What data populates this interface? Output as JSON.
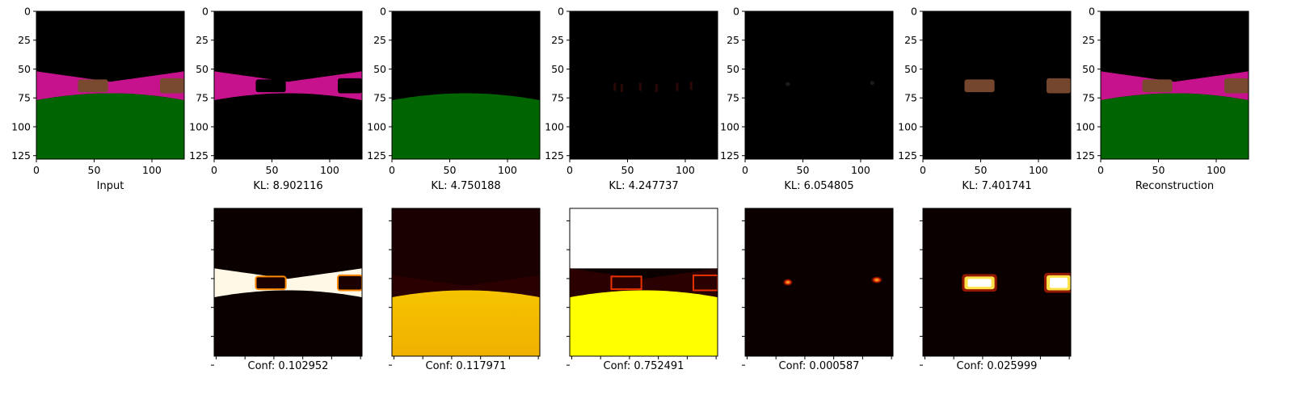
{
  "colors": {
    "background": "#000000",
    "road_magenta": "#c7128d",
    "grass_green": "#006400",
    "car_brown": "#7a4a30",
    "heat_low": "#000000",
    "heat_mid": "#e03300",
    "heat_high": "#ffff00",
    "heat_max": "#ffffff"
  },
  "chart_data": [
    {
      "type": "image",
      "content": "input",
      "xlabel": "Input",
      "xlim": [
        0,
        128
      ],
      "ylim": [
        128,
        0
      ],
      "xticks": [
        "0",
        "50",
        "100"
      ],
      "yticks": [
        "0",
        "25",
        "50",
        "75",
        "100",
        "125"
      ]
    },
    {
      "type": "image",
      "content": "component",
      "component": "road",
      "xlabel": "KL: 8.902116",
      "kl": 8.902116,
      "xlim": [
        0,
        128
      ],
      "ylim": [
        128,
        0
      ],
      "xticks": [
        "0",
        "50",
        "100"
      ],
      "yticks": [
        "0",
        "25",
        "50",
        "75",
        "100",
        "125"
      ]
    },
    {
      "type": "image",
      "content": "component",
      "component": "grass",
      "xlabel": "KL: 4.750188",
      "kl": 4.750188,
      "xlim": [
        0,
        128
      ],
      "ylim": [
        128,
        0
      ],
      "xticks": [
        "0",
        "50",
        "100"
      ],
      "yticks": [
        "0",
        "25",
        "50",
        "75",
        "100",
        "125"
      ]
    },
    {
      "type": "image",
      "content": "component",
      "component": "sky-edges",
      "xlabel": "KL: 4.247737",
      "kl": 4.247737,
      "xlim": [
        0,
        128
      ],
      "ylim": [
        128,
        0
      ],
      "xticks": [
        "0",
        "50",
        "100"
      ],
      "yticks": [
        "0",
        "25",
        "50",
        "75",
        "100",
        "125"
      ]
    },
    {
      "type": "image",
      "content": "component",
      "component": "faint",
      "xlabel": "KL: 6.054805",
      "kl": 6.054805,
      "xlim": [
        0,
        128
      ],
      "ylim": [
        128,
        0
      ],
      "xticks": [
        "0",
        "50",
        "100"
      ],
      "yticks": [
        "0",
        "25",
        "50",
        "75",
        "100",
        "125"
      ]
    },
    {
      "type": "image",
      "content": "component",
      "component": "cars",
      "xlabel": "KL: 7.401741",
      "kl": 7.401741,
      "xlim": [
        0,
        128
      ],
      "ylim": [
        128,
        0
      ],
      "xticks": [
        "0",
        "50",
        "100"
      ],
      "yticks": [
        "0",
        "25",
        "50",
        "75",
        "100",
        "125"
      ]
    },
    {
      "type": "image",
      "content": "reconstruction",
      "xlabel": "Reconstruction",
      "xlim": [
        0,
        128
      ],
      "ylim": [
        128,
        0
      ],
      "xticks": [
        "0",
        "50",
        "100"
      ],
      "yticks": [
        "0",
        "25",
        "50",
        "75",
        "100",
        "125"
      ]
    },
    {
      "type": "heatmap",
      "mask": "road",
      "xlabel": "Conf: 0.102952",
      "confidence": 0.102952
    },
    {
      "type": "heatmap",
      "mask": "grass",
      "xlabel": "Conf: 0.117971",
      "confidence": 0.117971
    },
    {
      "type": "heatmap",
      "mask": "sky",
      "xlabel": "Conf: 0.752491",
      "confidence": 0.752491
    },
    {
      "type": "heatmap",
      "mask": "faint",
      "xlabel": "Conf: 0.000587",
      "confidence": 0.000587
    },
    {
      "type": "heatmap",
      "mask": "cars",
      "xlabel": "Conf: 0.025999",
      "confidence": 0.025999
    }
  ]
}
